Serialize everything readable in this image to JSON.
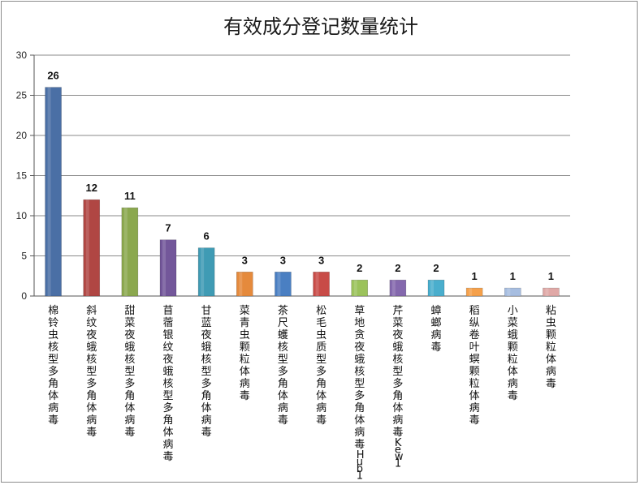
{
  "chart_data": {
    "type": "bar",
    "title": "有效成分登记数量统计",
    "xlabel": "",
    "ylabel": "",
    "ylim": [
      0,
      30
    ],
    "yticks": [
      0,
      5,
      10,
      15,
      20,
      25,
      30
    ],
    "grid": true,
    "legend": "none",
    "categories": [
      "棉铃虫核型多角体病毒",
      "斜纹夜蛾核型多角体病毒",
      "甜菜夜蛾核型多角体病毒",
      "苜蓿银纹夜蛾核型多角体病毒",
      "甘蓝夜蛾核型多角体病毒",
      "菜青虫颗粒体病毒",
      "茶尺蠖核型多角体病毒",
      "松毛虫质型多角体病毒",
      "草地贪夜蛾核型多角体病毒Hub1",
      "芹菜夜蛾核型多角体病毒Kew1",
      "蟑螂病毒",
      "稻纵卷叶螟颗粒体病毒",
      "小菜蛾颗粒体病毒",
      "粘虫颗粒体病毒"
    ],
    "values": [
      26,
      12,
      11,
      7,
      6,
      3,
      3,
      3,
      2,
      2,
      2,
      1,
      1,
      1
    ],
    "colors": [
      "#4a6fa5",
      "#b04643",
      "#8ba84f",
      "#73579a",
      "#3f9bb4",
      "#e58a3c",
      "#4a7fc2",
      "#c84b47",
      "#9bc25b",
      "#8468ad",
      "#4aaecd",
      "#f5a04a",
      "#a6bde0",
      "#e0a8a6"
    ]
  }
}
